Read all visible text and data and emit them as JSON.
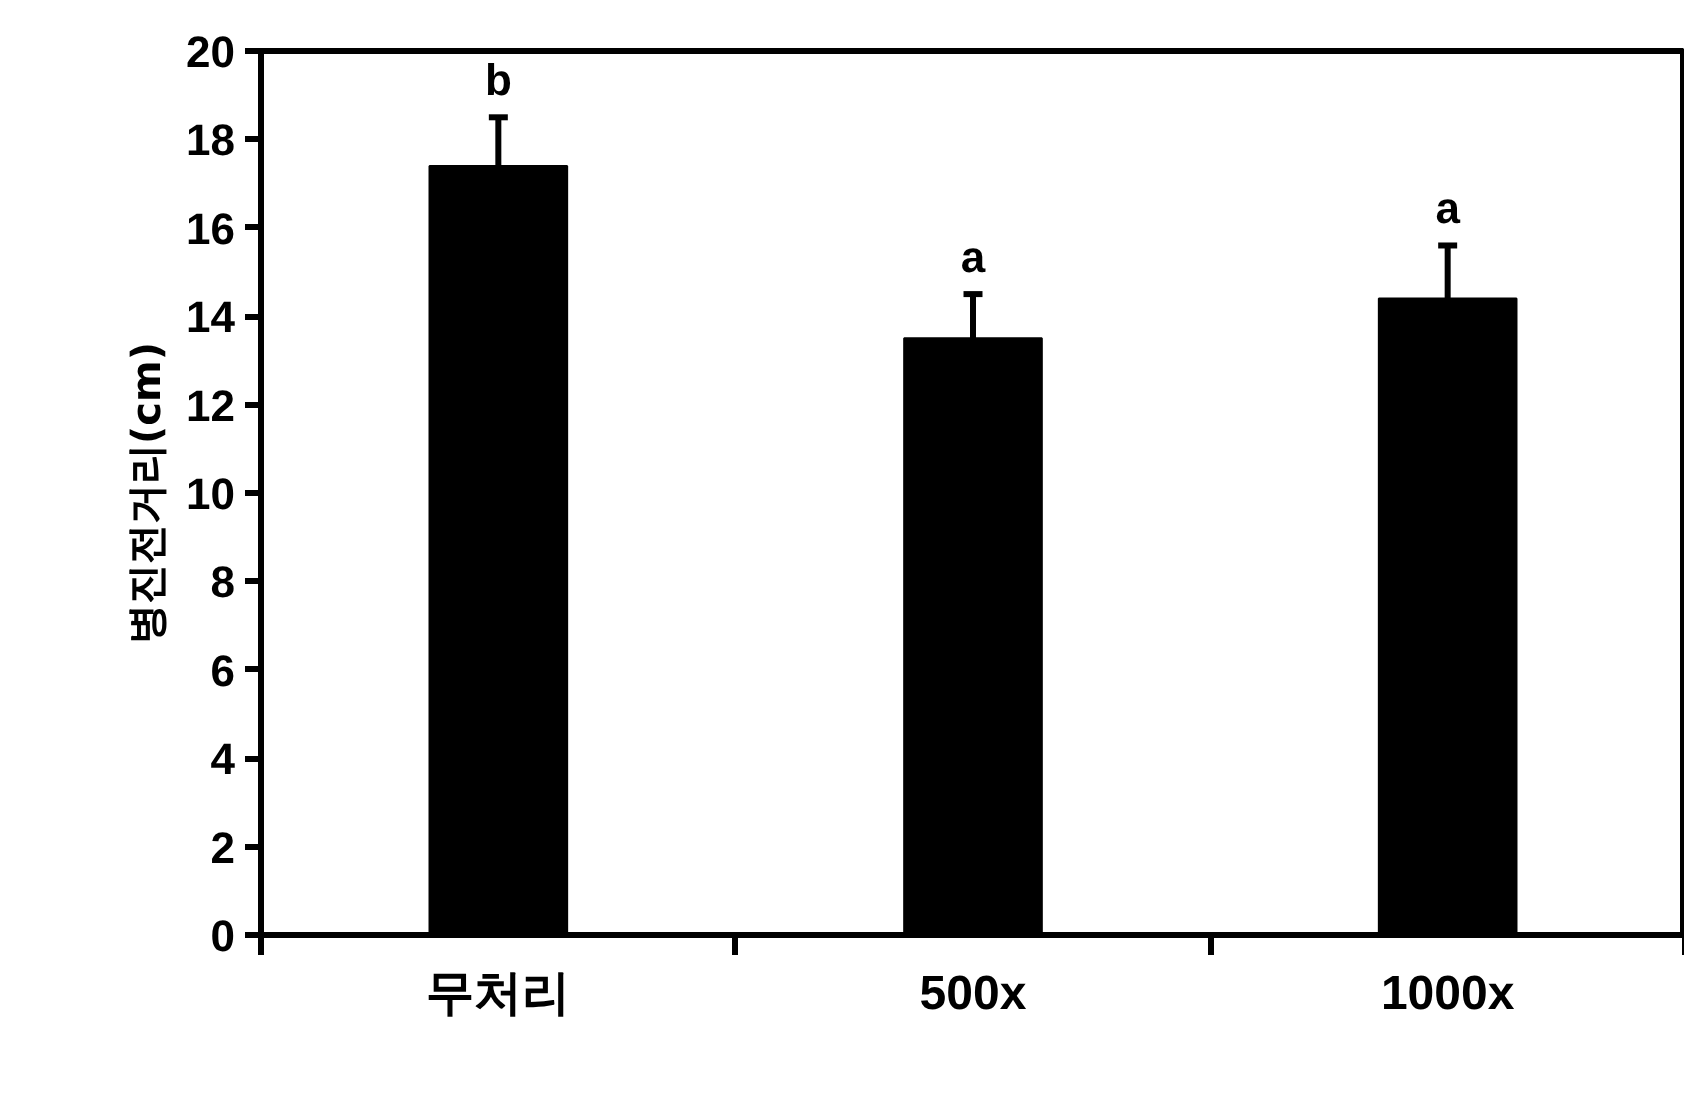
{
  "chart_data": {
    "type": "bar",
    "ylabel": "병진전거리(cm)",
    "categories": [
      "무처리",
      "500x",
      "1000x"
    ],
    "values": [
      17.4,
      13.5,
      14.4
    ],
    "color": "#000000",
    "errors": [
      [
        17.4,
        18.5
      ],
      [
        13.5,
        14.5
      ],
      [
        14.4,
        15.6
      ]
    ],
    "ylim": [
      0,
      20
    ],
    "yticks": [
      0,
      2,
      4,
      6,
      8,
      10,
      12,
      14,
      16,
      18,
      20
    ],
    "grid": false,
    "annotations": [
      "b",
      "a",
      "a"
    ]
  }
}
